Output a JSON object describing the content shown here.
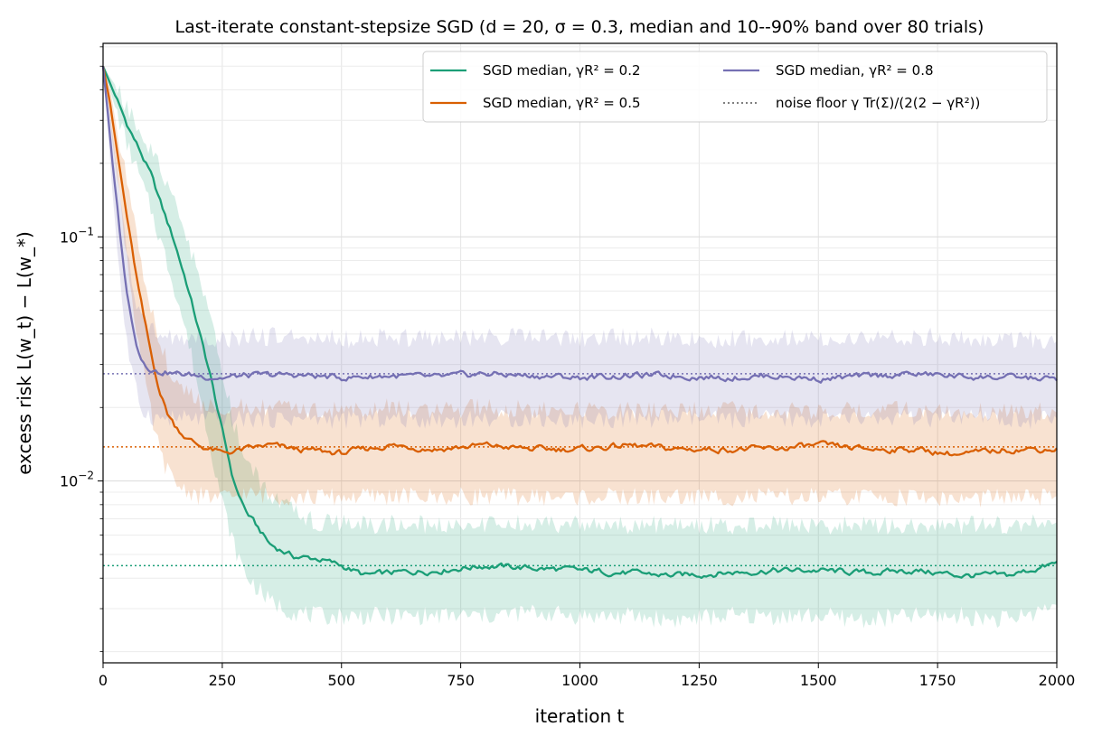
{
  "chart_data": {
    "type": "line",
    "title": "Last-iterate constant-stepsize SGD  (d = 20, σ = 0.3, median and 10--90% band over 80 trials)",
    "xlabel": "iteration t",
    "ylabel": "excess risk L(w_t) − L(w_*)",
    "xlim": [
      0,
      2000
    ],
    "ylim": [
      0.0018,
      0.62
    ],
    "y_scale": "log",
    "grid": true,
    "legend_position": "top-right",
    "x_ticks": [
      0,
      250,
      500,
      750,
      1000,
      1250,
      1500,
      1750,
      2000
    ],
    "x_tick_labels": [
      "0",
      "250",
      "500",
      "750",
      "1000",
      "1250",
      "1500",
      "1750",
      "2000"
    ],
    "y_ticks": [
      0.1,
      0.01
    ],
    "y_tick_labels": [
      "10^−1",
      "10^−2"
    ],
    "series": [
      {
        "name": "SGD median, γR² = 0.2",
        "color": "#1b9e77",
        "x": [
          0,
          25,
          50,
          75,
          100,
          125,
          150,
          175,
          200,
          225,
          250,
          275,
          300,
          350,
          400,
          450,
          500,
          550,
          600,
          700,
          800,
          900,
          1000,
          1100,
          1200,
          1300,
          1400,
          1500,
          1600,
          1700,
          1800,
          1900,
          2000
        ],
        "y": [
          0.5,
          0.38,
          0.29,
          0.23,
          0.18,
          0.13,
          0.095,
          0.065,
          0.042,
          0.027,
          0.016,
          0.0098,
          0.0075,
          0.0055,
          0.0049,
          0.0048,
          0.0045,
          0.0041,
          0.0042,
          0.0043,
          0.0045,
          0.0044,
          0.0043,
          0.0042,
          0.0041,
          0.0042,
          0.0043,
          0.0043,
          0.0042,
          0.0043,
          0.0041,
          0.0041,
          0.0046
        ],
        "band_low": [
          0.5,
          0.34,
          0.24,
          0.18,
          0.13,
          0.09,
          0.062,
          0.04,
          0.024,
          0.014,
          0.0082,
          0.0054,
          0.0041,
          0.0032,
          0.0029,
          0.0028,
          0.0028,
          0.0028,
          0.0028,
          0.0028,
          0.0028,
          0.0029,
          0.0028,
          0.0028,
          0.0027,
          0.0028,
          0.0028,
          0.0028,
          0.0027,
          0.0028,
          0.0028,
          0.0027,
          0.0031
        ],
        "band_high": [
          0.5,
          0.42,
          0.34,
          0.28,
          0.23,
          0.18,
          0.135,
          0.1,
          0.07,
          0.045,
          0.028,
          0.017,
          0.012,
          0.0088,
          0.0074,
          0.0068,
          0.0067,
          0.0066,
          0.0067,
          0.0066,
          0.0067,
          0.0067,
          0.0066,
          0.0066,
          0.0066,
          0.0066,
          0.0066,
          0.0066,
          0.0066,
          0.0066,
          0.0066,
          0.0066,
          0.0068
        ],
        "noise_floor": 0.0045
      },
      {
        "name": "SGD median, γR² = 0.5",
        "color": "#d95f02",
        "x": [
          0,
          15,
          30,
          45,
          60,
          75,
          90,
          105,
          120,
          135,
          150,
          175,
          200,
          250,
          300,
          350,
          400,
          500,
          600,
          700,
          800,
          900,
          1000,
          1100,
          1200,
          1300,
          1400,
          1500,
          1600,
          1700,
          1800,
          1900,
          2000
        ],
        "y": [
          0.5,
          0.35,
          0.22,
          0.14,
          0.09,
          0.06,
          0.042,
          0.03,
          0.023,
          0.019,
          0.017,
          0.015,
          0.014,
          0.013,
          0.0135,
          0.014,
          0.0135,
          0.013,
          0.014,
          0.0135,
          0.014,
          0.0135,
          0.0135,
          0.014,
          0.0135,
          0.0135,
          0.0135,
          0.014,
          0.0135,
          0.0135,
          0.0128,
          0.0135,
          0.0135
        ],
        "band_low": [
          0.5,
          0.3,
          0.17,
          0.1,
          0.058,
          0.036,
          0.024,
          0.017,
          0.013,
          0.011,
          0.0098,
          0.0092,
          0.0087,
          0.0085,
          0.0088,
          0.0087,
          0.0086,
          0.0086,
          0.0087,
          0.0086,
          0.0087,
          0.0086,
          0.0086,
          0.0086,
          0.0086,
          0.0086,
          0.0086,
          0.0086,
          0.0086,
          0.0086,
          0.0084,
          0.0086,
          0.0085
        ],
        "band_high": [
          0.5,
          0.4,
          0.27,
          0.19,
          0.13,
          0.09,
          0.065,
          0.048,
          0.037,
          0.03,
          0.026,
          0.023,
          0.021,
          0.02,
          0.02,
          0.02,
          0.0195,
          0.0195,
          0.02,
          0.0195,
          0.02,
          0.0195,
          0.0195,
          0.0195,
          0.0195,
          0.0195,
          0.0195,
          0.0195,
          0.0195,
          0.0195,
          0.019,
          0.0195,
          0.0195
        ],
        "noise_floor": 0.0138
      },
      {
        "name": "SGD median, γR² = 0.8",
        "color": "#7570b3",
        "x": [
          0,
          10,
          20,
          30,
          40,
          50,
          60,
          70,
          80,
          90,
          100,
          115,
          130,
          150,
          200,
          250,
          300,
          400,
          500,
          600,
          700,
          800,
          900,
          1000,
          1100,
          1200,
          1300,
          1400,
          1500,
          1600,
          1700,
          1800,
          1900,
          2000
        ],
        "y": [
          0.5,
          0.32,
          0.2,
          0.13,
          0.085,
          0.06,
          0.045,
          0.037,
          0.032,
          0.03,
          0.029,
          0.028,
          0.028,
          0.0275,
          0.027,
          0.0265,
          0.027,
          0.0272,
          0.0265,
          0.027,
          0.0265,
          0.0275,
          0.027,
          0.0265,
          0.027,
          0.027,
          0.0265,
          0.027,
          0.0262,
          0.0268,
          0.0275,
          0.0268,
          0.0265,
          0.0262
        ],
        "band_low": [
          0.5,
          0.27,
          0.15,
          0.09,
          0.055,
          0.037,
          0.028,
          0.023,
          0.02,
          0.019,
          0.0185,
          0.018,
          0.018,
          0.018,
          0.018,
          0.0178,
          0.018,
          0.018,
          0.0178,
          0.018,
          0.0178,
          0.018,
          0.018,
          0.0178,
          0.018,
          0.018,
          0.0178,
          0.018,
          0.0178,
          0.018,
          0.018,
          0.018,
          0.0178,
          0.0178
        ],
        "band_high": [
          0.5,
          0.37,
          0.26,
          0.18,
          0.125,
          0.09,
          0.068,
          0.055,
          0.047,
          0.043,
          0.041,
          0.04,
          0.039,
          0.039,
          0.039,
          0.038,
          0.039,
          0.039,
          0.038,
          0.039,
          0.038,
          0.039,
          0.039,
          0.038,
          0.039,
          0.039,
          0.038,
          0.039,
          0.038,
          0.039,
          0.039,
          0.039,
          0.038,
          0.038
        ],
        "noise_floor": 0.0275
      }
    ],
    "noise_floor_legend": "noise floor γ Tr(Σ)/(2(2 − γR²))",
    "noise_floor_color": "#555555"
  }
}
